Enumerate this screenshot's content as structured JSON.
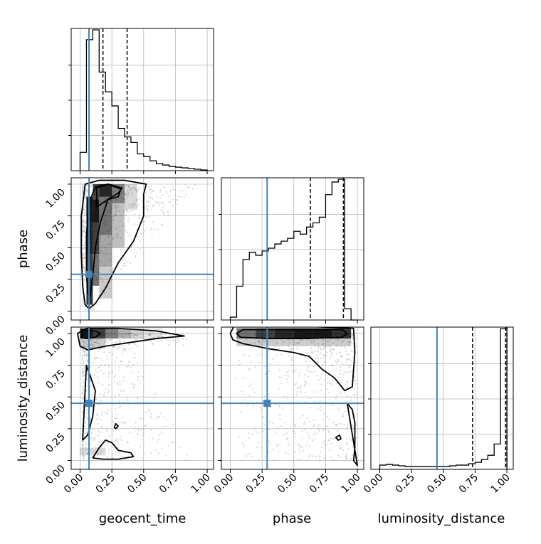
{
  "chart_data": {
    "type": "corner",
    "parameters": [
      "geocent_time",
      "phase",
      "luminosity_distance"
    ],
    "axis_labels": {
      "x": [
        "geocent_time",
        "phase",
        "luminosity_distance"
      ],
      "y_rows": [
        "",
        "phase",
        "luminosity_distance"
      ]
    },
    "tick_labels": [
      "0.00",
      "0.25",
      "0.50",
      "0.75",
      "1.00"
    ],
    "tick_values": [
      0.0,
      0.25,
      0.5,
      0.75,
      1.0
    ],
    "ranges": [
      [
        -0.07,
        1.05
      ],
      [
        -0.07,
        1.05
      ],
      [
        -0.07,
        1.05
      ]
    ],
    "truths": [
      0.07,
      0.29,
      0.45
    ],
    "quantiles": [
      [
        0.07,
        0.18,
        0.37
      ],
      [
        0.29,
        0.63,
        0.89
      ],
      [
        0.73,
        0.99,
        1.0
      ]
    ],
    "grid": true,
    "colors": {
      "truth": "#4682b4",
      "line": "#000000",
      "points": "#b0b0b0",
      "grid": "#b0b0b0"
    },
    "histograms": [
      {
        "parameter": "geocent_time",
        "bin_edges": [
          0.0,
          0.05,
          0.1,
          0.15,
          0.2,
          0.25,
          0.3,
          0.35,
          0.4,
          0.45,
          0.5,
          0.55,
          0.6,
          0.65,
          0.7,
          0.75,
          0.8,
          0.85,
          0.9,
          0.95,
          1.0
        ],
        "counts": [
          0.13,
          0.93,
          1.0,
          0.7,
          0.56,
          0.46,
          0.3,
          0.24,
          0.2,
          0.12,
          0.1,
          0.07,
          0.05,
          0.04,
          0.03,
          0.025,
          0.02,
          0.015,
          0.01,
          0.005
        ]
      },
      {
        "parameter": "phase",
        "bin_edges": [
          0.0,
          0.05,
          0.1,
          0.15,
          0.2,
          0.25,
          0.3,
          0.35,
          0.4,
          0.45,
          0.5,
          0.55,
          0.6,
          0.65,
          0.7,
          0.75,
          0.8,
          0.85,
          0.9,
          0.95,
          1.0
        ],
        "counts": [
          0.02,
          0.24,
          0.43,
          0.48,
          0.46,
          0.49,
          0.51,
          0.54,
          0.56,
          0.58,
          0.63,
          0.61,
          0.66,
          0.69,
          0.73,
          0.89,
          0.98,
          1.0,
          0.08,
          0.0
        ]
      },
      {
        "parameter": "luminosity_distance",
        "bin_edges": [
          0.0,
          0.05,
          0.1,
          0.15,
          0.2,
          0.25,
          0.3,
          0.35,
          0.4,
          0.45,
          0.5,
          0.55,
          0.6,
          0.65,
          0.7,
          0.75,
          0.8,
          0.85,
          0.9,
          0.95,
          1.0
        ],
        "counts": [
          0.03,
          0.035,
          0.03,
          0.025,
          0.02,
          0.02,
          0.02,
          0.02,
          0.02,
          0.02,
          0.02,
          0.025,
          0.03,
          0.03,
          0.04,
          0.05,
          0.07,
          0.1,
          0.18,
          1.0
        ]
      }
    ],
    "panels_2d": [
      {
        "x": "geocent_time",
        "y": "phase"
      },
      {
        "x": "geocent_time",
        "y": "luminosity_distance"
      },
      {
        "x": "phase",
        "y": "luminosity_distance"
      }
    ]
  }
}
